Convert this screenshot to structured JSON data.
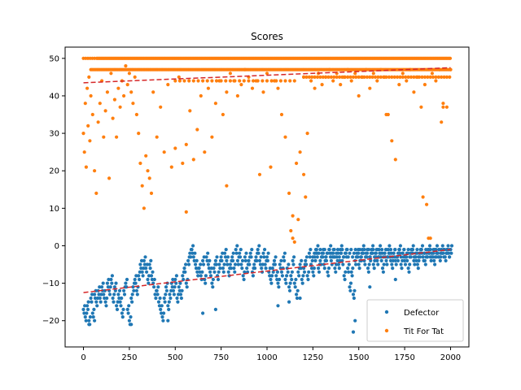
{
  "chart_data": {
    "type": "scatter",
    "title": "Scores",
    "xlabel": "",
    "ylabel": "",
    "xlim": [
      -100,
      2100
    ],
    "ylim": [
      -27,
      53
    ],
    "xticks": [
      0,
      250,
      500,
      750,
      1000,
      1250,
      1500,
      1750,
      2000
    ],
    "yticks": [
      -20,
      -10,
      0,
      10,
      20,
      30,
      40,
      50
    ],
    "grid": false,
    "legend": "lower-right",
    "series": [
      {
        "name": "Defector",
        "color": "#1f77b4",
        "trend": {
          "x": [
            0,
            2000
          ],
          "y": [
            -12.5,
            -1.0
          ],
          "color": "#d62728",
          "style": "dashed"
        },
        "x": [
          0,
          10,
          20,
          30,
          40,
          50,
          60,
          70,
          80,
          90,
          100,
          110,
          120,
          130,
          140,
          150,
          160,
          170,
          180,
          190,
          200,
          210,
          220,
          230,
          240,
          250,
          260,
          270,
          280,
          290,
          300,
          310,
          320,
          330,
          340,
          350,
          360,
          370,
          380,
          390,
          400,
          410,
          420,
          430,
          440,
          450,
          460,
          470,
          480,
          490,
          500,
          510,
          520,
          530,
          540,
          550,
          560,
          570,
          580,
          590,
          600,
          610,
          620,
          630,
          640,
          650,
          660,
          670,
          680,
          690,
          700,
          710,
          720,
          730,
          740,
          750,
          760,
          770,
          780,
          790,
          800,
          810,
          820,
          830,
          840,
          850,
          860,
          870,
          880,
          890,
          900,
          910,
          920,
          930,
          940,
          950,
          960,
          970,
          980,
          990,
          1000,
          1010,
          1020,
          1030,
          1040,
          1050,
          1060,
          1070,
          1080,
          1090,
          1100,
          1110,
          1120,
          1130,
          1140,
          1150,
          1160,
          1170,
          1180,
          1190,
          1200,
          1210,
          1220,
          1230,
          1240,
          1250,
          1260,
          1270,
          1280,
          1290,
          1300,
          1310,
          1320,
          1330,
          1340,
          1350,
          1360,
          1370,
          1380,
          1390,
          1400,
          1410,
          1420,
          1430,
          1440,
          1450,
          1460,
          1470,
          1480,
          1490,
          1500,
          1510,
          1520,
          1530,
          1540,
          1550,
          1560,
          1570,
          1580,
          1590,
          1600,
          1610,
          1620,
          1630,
          1640,
          1650,
          1660,
          1670,
          1680,
          1690,
          1700,
          1710,
          1720,
          1730,
          1740,
          1750,
          1760,
          1770,
          1780,
          1790,
          1800,
          1810,
          1820,
          1830,
          1840,
          1850,
          1860,
          1870,
          1880,
          1890,
          1900,
          1910,
          1920,
          1930,
          1940,
          1950,
          1960,
          1970,
          1980,
          1990,
          2000
        ],
        "y": [
          -17,
          -19,
          -16,
          -20,
          -14,
          -18,
          -13,
          -15,
          -12,
          -14,
          -11,
          -13,
          -15,
          -10,
          -12,
          -9,
          -14,
          -11,
          -16,
          -13,
          -15,
          -18,
          -12,
          -10,
          -17,
          -20,
          -14,
          -11,
          -9,
          -12,
          -8,
          -5,
          -7,
          -4,
          -6,
          -9,
          -5,
          -8,
          -10,
          -13,
          -12,
          -15,
          -17,
          -19,
          -14,
          -11,
          -16,
          -13,
          -10,
          -12,
          -9,
          -14,
          -11,
          -13,
          -8,
          -6,
          -10,
          -4,
          -2,
          -1,
          -3,
          -5,
          -7,
          -6,
          -8,
          -4,
          -9,
          -3,
          -5,
          -7,
          -10,
          -6,
          -4,
          -8,
          -5,
          -3,
          -6,
          -2,
          -4,
          -7,
          -5,
          -3,
          -6,
          -1,
          -4,
          -2,
          -5,
          -8,
          -3,
          -6,
          -4,
          -2,
          -7,
          -5,
          -3,
          -1,
          -4,
          -6,
          -2,
          -5,
          -3,
          -7,
          -9,
          -6,
          -4,
          -8,
          -10,
          -5,
          -7,
          -3,
          -9,
          -6,
          -11,
          -8,
          -4,
          -10,
          -13,
          -7,
          -5,
          -9,
          -6,
          -4,
          -8,
          -2,
          -5,
          -7,
          -3,
          -1,
          -6,
          -4,
          -2,
          -5,
          -3,
          -7,
          -1,
          -4,
          -2,
          -6,
          -3,
          -5,
          -1,
          -4,
          -8,
          -2,
          -6,
          -11,
          -7,
          -13,
          -4,
          -2,
          -5,
          -3,
          -1,
          -4,
          -2,
          -6,
          -3,
          -1,
          -5,
          -2,
          -4,
          -1,
          -3,
          -6,
          -2,
          -4,
          -1,
          -3,
          -5,
          -2,
          -4,
          -3,
          -1,
          -5,
          -2,
          -4,
          -3,
          -6,
          -2,
          -1,
          -4,
          -3,
          -5,
          -2,
          -1,
          -3,
          -4,
          -2,
          -1,
          -3,
          -2,
          -4,
          -1,
          -2,
          -3,
          -1,
          -2,
          -3,
          -1,
          -2,
          -1
        ],
        "extra_x": [
          1470,
          1480,
          30,
          60,
          260,
          460,
          650,
          720,
          1060,
          1120,
          1180,
          1560,
          1700
        ],
        "extra_y": [
          -23,
          -20,
          -21,
          -20,
          -21,
          -20,
          -18,
          -17,
          -16,
          -15,
          -14,
          -11,
          -9
        ]
      },
      {
        "name": "Tit For Tat",
        "color": "#ff7f0e",
        "trend": {
          "x": [
            0,
            2000
          ],
          "y": [
            43.5,
            47.5
          ],
          "color": "#d62728",
          "style": "dashed"
        },
        "top_band_x_start": 0,
        "top_band_x_end": 2000,
        "top_band_y": 50,
        "mid_band_y": 47,
        "x": [
          0,
          5,
          10,
          15,
          20,
          25,
          30,
          35,
          40,
          50,
          60,
          70,
          80,
          90,
          100,
          110,
          120,
          130,
          140,
          150,
          160,
          170,
          180,
          190,
          200,
          210,
          220,
          230,
          240,
          250,
          260,
          270,
          280,
          290,
          300,
          310,
          320,
          330,
          340,
          350,
          360,
          370,
          380,
          400,
          420,
          440,
          460,
          480,
          500,
          520,
          540,
          560,
          580,
          600,
          620,
          640,
          660,
          680,
          700,
          720,
          740,
          760,
          780,
          800,
          820,
          840,
          860,
          880,
          900,
          920,
          940,
          960,
          980,
          1000,
          1020,
          1040,
          1060,
          1080,
          1100,
          1120,
          1140,
          1160,
          1180,
          1200,
          1220,
          1240,
          1260,
          1280,
          1300,
          1320,
          1340,
          1360,
          1380,
          1400,
          1420,
          1440,
          1460,
          1480,
          1500,
          1520,
          1540,
          1560,
          1580,
          1600,
          1620,
          1640,
          1660,
          1680,
          1700,
          1720,
          1740,
          1760,
          1780,
          1800,
          1820,
          1840,
          1860,
          1880,
          1900,
          1920,
          1940,
          1960,
          1980,
          2000
        ],
        "y": [
          30,
          25,
          38,
          21,
          42,
          32,
          45,
          28,
          40,
          35,
          20,
          14,
          33,
          38,
          44,
          29,
          36,
          41,
          18,
          46,
          34,
          39,
          29,
          42,
          37,
          44,
          40,
          48,
          43,
          46,
          41,
          38,
          45,
          35,
          30,
          22,
          16,
          10,
          24,
          20,
          18,
          14,
          41,
          29,
          37,
          25,
          43,
          21,
          26,
          45,
          22,
          27,
          36,
          23,
          31,
          40,
          25,
          42,
          29,
          38,
          44,
          35,
          41,
          46,
          44,
          40,
          43,
          47,
          45,
          42,
          44,
          19,
          41,
          46,
          21,
          44,
          42,
          35,
          29,
          14,
          8,
          22,
          25,
          45,
          30,
          44,
          42,
          46,
          43,
          45,
          47,
          44,
          46,
          43,
          45,
          47,
          44,
          46,
          40,
          45,
          47,
          42,
          46,
          44,
          47,
          45,
          35,
          28,
          23,
          43,
          46,
          44,
          47,
          41,
          45,
          37,
          43,
          2,
          46,
          44,
          47,
          38,
          37,
          47
        ],
        "extra_x": [
          1130,
          1140,
          1150,
          1170,
          1850,
          1870,
          1890,
          1950,
          1960,
          560,
          780,
          1200,
          1210,
          1650
        ],
        "extra_y": [
          4,
          2,
          1,
          7,
          13,
          11,
          2,
          33,
          37,
          9,
          16,
          19,
          13,
          35
        ]
      }
    ]
  }
}
